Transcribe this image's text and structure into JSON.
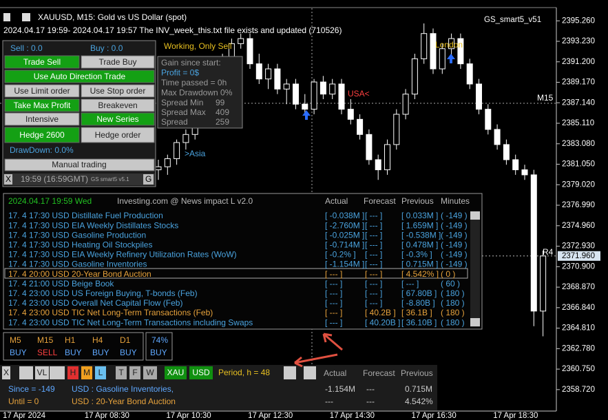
{
  "header": {
    "symbol_line": "XAUUSD, M15:  Gold vs US Dollar (spot)",
    "status_line": "2024.04.17 19:59- 2024.04.17 19:57 The INV_week_this.txt file exists and updated (710526)",
    "indicator": "GS_smart5_v51"
  },
  "chart": {
    "ylim": [
      2356.8,
      2396.3
    ],
    "yticks": [
      {
        "value": 2395.26,
        "label": "2395.260"
      },
      {
        "value": 2393.23,
        "label": "2393.230"
      },
      {
        "value": 2391.2,
        "label": "2391.200"
      },
      {
        "value": 2389.17,
        "label": "2389.170"
      },
      {
        "value": 2387.14,
        "label": "2387.140"
      },
      {
        "value": 2385.11,
        "label": "2385.110"
      },
      {
        "value": 2383.08,
        "label": "2383.080"
      },
      {
        "value": 2381.05,
        "label": "2381.050"
      },
      {
        "value": 2379.02,
        "label": "2379.020"
      },
      {
        "value": 2376.99,
        "label": "2376.990"
      },
      {
        "value": 2374.96,
        "label": "2374.960"
      },
      {
        "value": 2372.93,
        "label": "2372.930"
      },
      {
        "value": 2370.9,
        "label": "2370.900"
      },
      {
        "value": 2368.87,
        "label": "2368.870"
      },
      {
        "value": 2366.84,
        "label": "2366.840"
      },
      {
        "value": 2364.81,
        "label": "2364.810"
      },
      {
        "value": 2362.78,
        "label": "2362.780"
      },
      {
        "value": 2360.75,
        "label": "2360.750"
      },
      {
        "value": 2358.72,
        "label": "2358.720"
      }
    ],
    "current_price": {
      "value": 2371.96,
      "label": "2371.960"
    },
    "xlabels": [
      "17 Apr 2024",
      "17 Apr 08:30",
      "17 Apr 10:30",
      "17 Apr 12:30",
      "17 Apr 14:30",
      "17 Apr 16:30",
      "17 Apr 18:30"
    ],
    "bull_color": "#000000",
    "bear_color": "#ffffff",
    "candles": [
      [
        2380.5,
        2381.5,
        2379.5,
        2380.8
      ],
      [
        2380.8,
        2382,
        2380,
        2381.6
      ],
      [
        2381.6,
        2383.5,
        2381,
        2383.2
      ],
      [
        2383.2,
        2384.5,
        2382.5,
        2384
      ],
      [
        2384,
        2386,
        2383.5,
        2385.5
      ],
      [
        2385.5,
        2388,
        2385,
        2387.5
      ],
      [
        2387.5,
        2390,
        2387,
        2389.5
      ],
      [
        2389.5,
        2392,
        2389,
        2391.5
      ],
      [
        2391.5,
        2393.5,
        2391,
        2393
      ],
      [
        2393,
        2394,
        2392.5,
        2393.5
      ],
      [
        2393.5,
        2394,
        2390.5,
        2391
      ],
      [
        2391,
        2392,
        2389,
        2389.5
      ],
      [
        2389.5,
        2391,
        2388.5,
        2390.5
      ],
      [
        2390.5,
        2391,
        2388,
        2388.5
      ],
      [
        2388.5,
        2389.5,
        2387,
        2389
      ],
      [
        2389,
        2389.5,
        2386.5,
        2387
      ],
      [
        2387,
        2388,
        2386,
        2386.5
      ],
      [
        2386.5,
        2389.5,
        2386,
        2389.2
      ],
      [
        2389.2,
        2389.8,
        2387.5,
        2388
      ],
      [
        2388,
        2389.5,
        2387.5,
        2389
      ],
      [
        2389,
        2389.5,
        2386,
        2386.5
      ],
      [
        2386.5,
        2387.5,
        2385,
        2385.5
      ],
      [
        2385.5,
        2386,
        2383.5,
        2384
      ],
      [
        2384,
        2384.5,
        2381,
        2381.5
      ],
      [
        2381.5,
        2382,
        2379.5,
        2380.5
      ],
      [
        2380.5,
        2383.5,
        2380,
        2383
      ],
      [
        2383,
        2386.5,
        2382.5,
        2386
      ],
      [
        2386,
        2388.5,
        2385.5,
        2388
      ],
      [
        2388,
        2392,
        2387.5,
        2391.5
      ],
      [
        2391.5,
        2395,
        2391,
        2394
      ],
      [
        2394,
        2394.5,
        2390,
        2390.5
      ],
      [
        2390.5,
        2393,
        2390,
        2392.5
      ],
      [
        2392.5,
        2394,
        2391.5,
        2393.5
      ],
      [
        2393.5,
        2394,
        2390.5,
        2391
      ],
      [
        2391,
        2391.5,
        2388.5,
        2389
      ],
      [
        2389,
        2389.5,
        2386,
        2386.5
      ],
      [
        2386.5,
        2387,
        2384,
        2384.5
      ],
      [
        2384.5,
        2385,
        2382.5,
        2383
      ],
      [
        2383,
        2383.5,
        2381,
        2381.5
      ],
      [
        2381.5,
        2382,
        2380,
        2380.5
      ],
      [
        2380.5,
        2381,
        2379.5,
        2380
      ],
      [
        2380,
        2380.5,
        2365,
        2366.5
      ],
      [
        2366.5,
        2372.5,
        2364,
        2371.96
      ]
    ],
    "annotations": [
      "Working, Only Sell",
      ">Asia",
      "USA<",
      "London",
      "M15",
      "R4"
    ]
  },
  "trade_panel": {
    "sell": "Sell : 0.0",
    "buy": "Buy : 0.0",
    "buttons": [
      "Trade Sell",
      "Trade Buy",
      "Use Auto Direction Trade",
      "Use Limit order",
      "Use Stop order",
      "Take Max Profit",
      "Breakeven",
      "Intensive",
      "New Series",
      "Hedge 2600",
      "Hedge order"
    ],
    "drawdown": "DrawDown: 0.0%",
    "manual": "Manual trading",
    "footer": [
      "X",
      "19:59 (16:59GMT)",
      "GS smart5 v5.1",
      "G"
    ]
  },
  "gain_panel": {
    "lines": [
      "Gain since start:",
      "Profit = 0$",
      "Time passed = 0h",
      "Max Drawdown 0%"
    ],
    "spreads": [
      [
        "Spread Min",
        "99"
      ],
      [
        "Spread Max",
        "409"
      ],
      [
        "Spread",
        "259"
      ]
    ]
  },
  "news": {
    "header": [
      "2024.04.17 19:59 Wed",
      "Investing.com @ News impact L v2.0",
      "Actual",
      "Forecast",
      "Previous",
      "Minutes"
    ],
    "rows": [
      {
        "event": "17. 4 17:30 USD Distillate Fuel Production",
        "actual": "[ -0.038M ]",
        "forecast": "[ --- ]",
        "previous": "[ 0.033M ]",
        "minutes": "( -149 )",
        "color": "#4aa3df"
      },
      {
        "event": "17. 4 17:30 USD EIA Weekly Distillates Stocks",
        "actual": "[ -2.760M ]",
        "forecast": "[ --- ]",
        "previous": "[ 1.659M ]",
        "minutes": "( -149 )",
        "color": "#4aa3df"
      },
      {
        "event": "17. 4 17:30 USD Gasoline Production",
        "actual": "[ -0.025M ]",
        "forecast": "[ --- ]",
        "previous": "[ -0.538M ]",
        "minutes": "( -149 )",
        "color": "#4aa3df"
      },
      {
        "event": "17. 4 17:30 USD Heating Oil Stockpiles",
        "actual": "[ -0.714M ]",
        "forecast": "[ --- ]",
        "previous": "[ 0.478M ]",
        "minutes": "( -149 )",
        "color": "#4aa3df"
      },
      {
        "event": "17. 4 17:30 USD EIA Weekly Refinery Utilization Rates (WoW)",
        "actual": "[ -0.2% ]",
        "forecast": "[ --- ]",
        "previous": "[ -0.3% ]",
        "minutes": "( -149 )",
        "color": "#4aa3df"
      },
      {
        "event": "17. 4 17:30 USD Gasoline Inventories",
        "actual": "[ -1.154M ]",
        "forecast": "[ --- ]",
        "previous": "[ 0.715M ]",
        "minutes": "( -149 )",
        "color": "#4aa3df"
      },
      {
        "event": "17. 4 20:00 USD 20-Year Bond Auction",
        "actual": "[ --- ]",
        "forecast": "[ --- ]",
        "previous": "[ 4.542% ]",
        "minutes": "( 0 )",
        "color": "#e8a33c"
      },
      {
        "event": "17. 4 21:00 USD Beige Book",
        "actual": "[ --- ]",
        "forecast": "[ --- ]",
        "previous": "[ --- ]",
        "minutes": "( 60 )",
        "color": "#4aa3df"
      },
      {
        "event": "17. 4 23:00 USD US Foreign Buying, T-bonds (Feb)",
        "actual": "[ --- ]",
        "forecast": "[ --- ]",
        "previous": "[ 67.80B ]",
        "minutes": "( 180 )",
        "color": "#4aa3df"
      },
      {
        "event": "17. 4 23:00 USD Overall Net Capital Flow (Feb)",
        "actual": "[ --- ]",
        "forecast": "[ --- ]",
        "previous": "[ -8.80B ]",
        "minutes": "( 180 )",
        "color": "#4aa3df"
      },
      {
        "event": "17. 4 23:00 USD TIC Net Long-Term Transactions (Feb)",
        "actual": "[ --- ]",
        "forecast": "[ 40.2B ]",
        "previous": "[ 36.1B ]",
        "minutes": "( 180 )",
        "color": "#e8a33c"
      },
      {
        "event": "17. 4 23:00 USD TIC Net Long-Term Transactions including Swaps",
        "actual": "[ --- ]",
        "forecast": "[ 40.20B ]",
        "previous": "[ 36.10B ]",
        "minutes": "( 180 )",
        "color": "#4aa3df"
      }
    ]
  },
  "signals": {
    "timeframes": [
      [
        "M5",
        "BUY"
      ],
      [
        "M15",
        "SELL"
      ],
      [
        "H1",
        "BUY"
      ],
      [
        "H4",
        "BUY"
      ],
      [
        "D1",
        "BUY"
      ]
    ],
    "total": [
      "74%",
      "BUY"
    ]
  },
  "bottom_bar": {
    "buttons": [
      "X",
      "VL",
      "H",
      "M",
      "L",
      "T",
      "F",
      "W",
      "XAU",
      "USD"
    ],
    "period": "Period, h = 48",
    "columns": [
      "Actual",
      "Forecast",
      "Previous"
    ],
    "rows": [
      [
        "Since = -149",
        "USD : Gasoline Inventories,",
        "-1.154M",
        "---",
        "0.715M"
      ],
      [
        "Until = 0",
        "USD : 20-Year Bond Auction",
        "---",
        "---",
        "4.542%"
      ]
    ]
  }
}
